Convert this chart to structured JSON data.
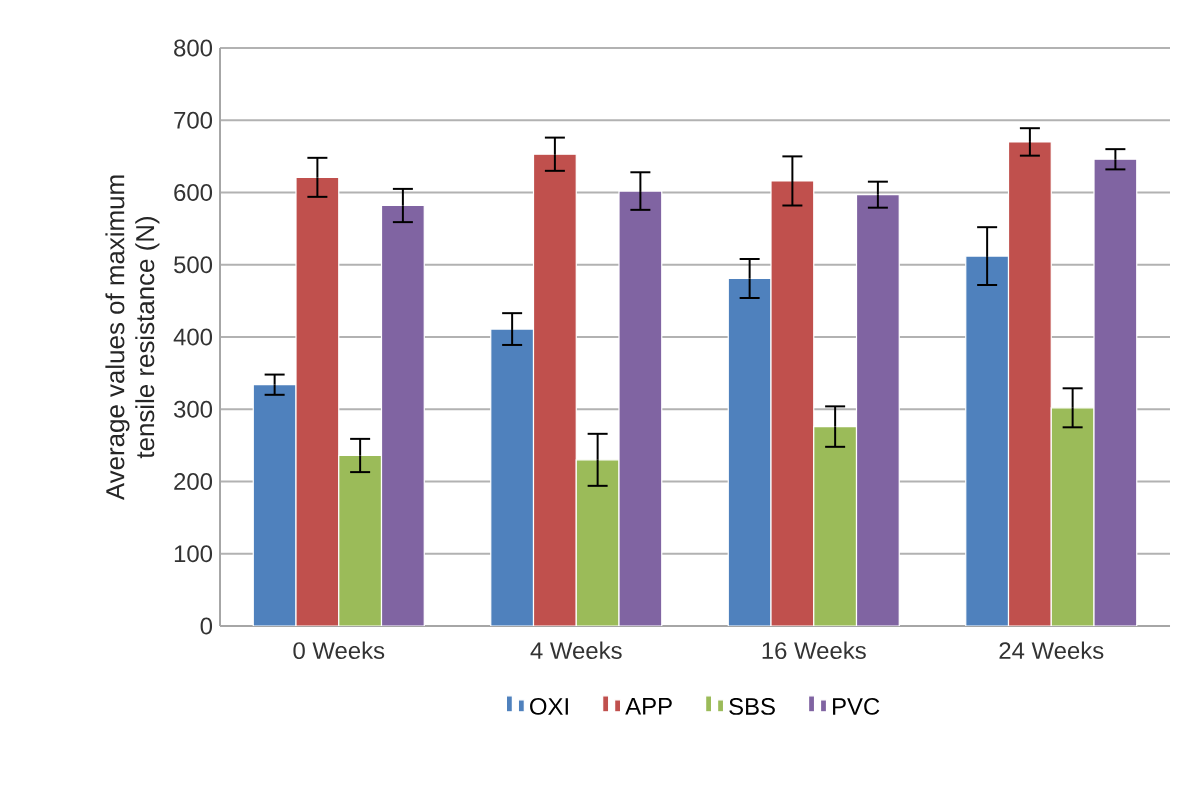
{
  "chart_data": {
    "type": "bar",
    "ylabel": "Average values of maximum tensile resistance (N)",
    "categories": [
      "0 Weeks",
      "4 Weeks",
      "16 Weeks",
      "24 Weeks"
    ],
    "series": [
      {
        "name": "OXI",
        "color": "#4f81bd",
        "values": [
          334,
          411,
          481,
          512
        ],
        "errors": [
          14,
          22,
          27,
          40
        ]
      },
      {
        "name": "APP",
        "color": "#c0504d",
        "values": [
          621,
          653,
          616,
          670
        ],
        "errors": [
          27,
          23,
          34,
          19
        ]
      },
      {
        "name": "SBS",
        "color": "#9bbb59",
        "values": [
          236,
          230,
          276,
          302
        ],
        "errors": [
          23,
          36,
          28,
          27
        ]
      },
      {
        "name": "PVC",
        "color": "#8064a2",
        "values": [
          582,
          602,
          597,
          646
        ],
        "errors": [
          23,
          26,
          18,
          14
        ]
      }
    ],
    "ylim": [
      0,
      800
    ],
    "yticks": [
      0,
      100,
      200,
      300,
      400,
      500,
      600,
      700,
      800
    ],
    "grid": "y",
    "legend": "bottom"
  }
}
